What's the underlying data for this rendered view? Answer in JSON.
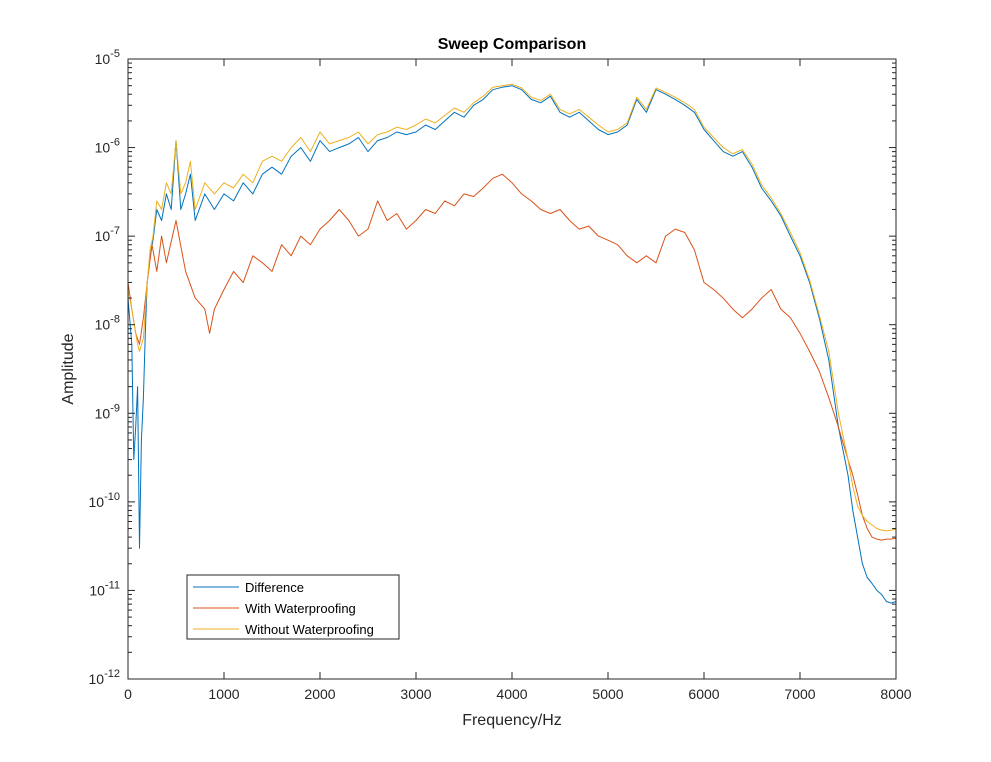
{
  "chart_data": {
    "type": "line",
    "title": "Sweep Comparison",
    "xlabel": "Frequency/Hz",
    "ylabel": "Amplitude",
    "xlim": [
      0,
      8000
    ],
    "ylim": [
      1e-12,
      1e-05
    ],
    "yscale": "log",
    "grid": false,
    "legend_position": "bottom-left",
    "x_ticks": [
      {
        "value": 0,
        "label": "0"
      },
      {
        "value": 1000,
        "label": "1000"
      },
      {
        "value": 2000,
        "label": "2000"
      },
      {
        "value": 3000,
        "label": "3000"
      },
      {
        "value": 4000,
        "label": "4000"
      },
      {
        "value": 5000,
        "label": "5000"
      },
      {
        "value": 6000,
        "label": "6000"
      },
      {
        "value": 7000,
        "label": "7000"
      },
      {
        "value": 8000,
        "label": "8000"
      }
    ],
    "y_ticks": [
      {
        "exp": -12,
        "base": "10",
        "sup": "-12"
      },
      {
        "exp": -11,
        "base": "10",
        "sup": "-11"
      },
      {
        "exp": -10,
        "base": "10",
        "sup": "-10"
      },
      {
        "exp": -9,
        "base": "10",
        "sup": "-9"
      },
      {
        "exp": -8,
        "base": "10",
        "sup": "-8"
      },
      {
        "exp": -7,
        "base": "10",
        "sup": "-7"
      },
      {
        "exp": -6,
        "base": "10",
        "sup": "-6"
      },
      {
        "exp": -5,
        "base": "10",
        "sup": "-5"
      }
    ],
    "series": [
      {
        "name": "Difference",
        "color": "#0072BD",
        "x": [
          0,
          40,
          60,
          80,
          100,
          120,
          140,
          160,
          180,
          200,
          230,
          260,
          300,
          350,
          400,
          450,
          500,
          550,
          600,
          650,
          700,
          800,
          900,
          1000,
          1100,
          1200,
          1300,
          1400,
          1500,
          1600,
          1700,
          1800,
          1900,
          2000,
          2100,
          2200,
          2300,
          2400,
          2500,
          2600,
          2700,
          2800,
          2900,
          3000,
          3100,
          3200,
          3300,
          3400,
          3500,
          3600,
          3700,
          3800,
          3900,
          4000,
          4100,
          4200,
          4300,
          4400,
          4500,
          4600,
          4700,
          4800,
          4900,
          5000,
          5100,
          5200,
          5300,
          5400,
          5500,
          5600,
          5700,
          5800,
          5900,
          6000,
          6100,
          6200,
          6300,
          6400,
          6500,
          6600,
          6700,
          6800,
          6900,
          7000,
          7100,
          7200,
          7300,
          7400,
          7500,
          7550,
          7600,
          7650,
          7700,
          7750,
          7800,
          7850,
          7900,
          7950,
          8000
        ],
        "y": [
          2e-08,
          6e-09,
          3e-10,
          7e-10,
          2e-09,
          3e-11,
          5e-10,
          1.5e-09,
          8e-09,
          3e-08,
          6e-08,
          9e-08,
          2e-07,
          1.5e-07,
          3e-07,
          2e-07,
          1.2e-06,
          2e-07,
          3e-07,
          5e-07,
          1.5e-07,
          3e-07,
          2e-07,
          3e-07,
          2.5e-07,
          4e-07,
          3e-07,
          5e-07,
          6e-07,
          5e-07,
          8e-07,
          1e-06,
          7e-07,
          1.2e-06,
          9e-07,
          1e-06,
          1.1e-06,
          1.3e-06,
          9e-07,
          1.2e-06,
          1.3e-06,
          1.5e-06,
          1.4e-06,
          1.5e-06,
          1.8e-06,
          1.6e-06,
          2e-06,
          2.5e-06,
          2.2e-06,
          3e-06,
          3.5e-06,
          4.5e-06,
          4.8e-06,
          5e-06,
          4.5e-06,
          3.5e-06,
          3.2e-06,
          3.8e-06,
          2.5e-06,
          2.2e-06,
          2.5e-06,
          2e-06,
          1.6e-06,
          1.4e-06,
          1.5e-06,
          1.8e-06,
          3.5e-06,
          2.5e-06,
          4.5e-06,
          4e-06,
          3.5e-06,
          3e-06,
          2.5e-06,
          1.6e-06,
          1.2e-06,
          9e-07,
          8e-07,
          9e-07,
          6e-07,
          3.5e-07,
          2.5e-07,
          1.7e-07,
          1e-07,
          6e-08,
          3e-08,
          1.2e-08,
          4e-09,
          7e-10,
          2e-10,
          8e-11,
          4e-11,
          2e-11,
          1.4e-11,
          1.2e-11,
          1e-11,
          9e-12,
          7.5e-12,
          7.2e-12,
          7.5e-12
        ]
      },
      {
        "name": "With Waterproofing",
        "color": "#D95319",
        "x": [
          0,
          40,
          80,
          120,
          160,
          200,
          250,
          300,
          350,
          400,
          500,
          600,
          700,
          800,
          850,
          900,
          1000,
          1100,
          1200,
          1300,
          1400,
          1500,
          1600,
          1700,
          1800,
          1900,
          2000,
          2100,
          2200,
          2300,
          2400,
          2500,
          2600,
          2700,
          2800,
          2900,
          3000,
          3100,
          3200,
          3300,
          3400,
          3500,
          3600,
          3700,
          3800,
          3900,
          4000,
          4100,
          4200,
          4300,
          4400,
          4500,
          4600,
          4700,
          4800,
          4900,
          5000,
          5100,
          5200,
          5300,
          5400,
          5500,
          5600,
          5700,
          5800,
          5900,
          6000,
          6100,
          6200,
          6300,
          6400,
          6500,
          6600,
          6700,
          6800,
          6900,
          7000,
          7100,
          7200,
          7300,
          7400,
          7500,
          7550,
          7600,
          7650,
          7700,
          7750,
          7800,
          7850,
          7900,
          7950,
          8000
        ],
        "y": [
          3e-08,
          1.5e-08,
          8e-09,
          6e-09,
          1.2e-08,
          3e-08,
          8e-08,
          4e-08,
          1e-07,
          5e-08,
          1.5e-07,
          4e-08,
          2e-08,
          1.5e-08,
          8e-09,
          1.5e-08,
          2.5e-08,
          4e-08,
          3e-08,
          6e-08,
          5e-08,
          4e-08,
          8e-08,
          6e-08,
          1e-07,
          8e-08,
          1.2e-07,
          1.5e-07,
          2e-07,
          1.5e-07,
          1e-07,
          1.2e-07,
          2.5e-07,
          1.5e-07,
          1.8e-07,
          1.2e-07,
          1.5e-07,
          2e-07,
          1.8e-07,
          2.5e-07,
          2.2e-07,
          3e-07,
          2.8e-07,
          3.5e-07,
          4.5e-07,
          5e-07,
          4e-07,
          3e-07,
          2.5e-07,
          2e-07,
          1.8e-07,
          2e-07,
          1.5e-07,
          1.2e-07,
          1.3e-07,
          1e-07,
          9e-08,
          8e-08,
          6e-08,
          5e-08,
          6e-08,
          5e-08,
          1e-07,
          1.2e-07,
          1.1e-07,
          7e-08,
          3e-08,
          2.5e-08,
          2e-08,
          1.5e-08,
          1.2e-08,
          1.5e-08,
          2e-08,
          2.5e-08,
          1.5e-08,
          1.2e-08,
          8e-09,
          5e-09,
          3e-09,
          1.5e-09,
          7e-10,
          3e-10,
          2e-10,
          1.2e-10,
          7e-11,
          5e-11,
          4e-11,
          3.8e-11,
          3.7e-11,
          3.8e-11,
          3.8e-11,
          3.9e-11
        ]
      },
      {
        "name": "Without Waterproofing",
        "color": "#EDB120",
        "x": [
          0,
          40,
          80,
          100,
          120,
          160,
          200,
          230,
          260,
          300,
          350,
          400,
          450,
          500,
          550,
          600,
          650,
          700,
          800,
          900,
          1000,
          1100,
          1200,
          1300,
          1400,
          1500,
          1600,
          1700,
          1800,
          1900,
          2000,
          2100,
          2200,
          2300,
          2400,
          2500,
          2600,
          2700,
          2800,
          2900,
          3000,
          3100,
          3200,
          3300,
          3400,
          3500,
          3600,
          3700,
          3800,
          3900,
          4000,
          4100,
          4200,
          4300,
          4400,
          4500,
          4600,
          4700,
          4800,
          4900,
          5000,
          5100,
          5200,
          5300,
          5400,
          5500,
          5600,
          5700,
          5800,
          5900,
          6000,
          6100,
          6200,
          6300,
          6400,
          6500,
          6600,
          6700,
          6800,
          6900,
          7000,
          7100,
          7200,
          7300,
          7400,
          7500,
          7550,
          7600,
          7650,
          7700,
          7750,
          7800,
          7850,
          7900,
          7950,
          8000
        ],
        "y": [
          2.5e-08,
          1.5e-08,
          8e-09,
          6e-09,
          5e-09,
          7e-09,
          3e-08,
          7e-08,
          1e-07,
          2.5e-07,
          2e-07,
          4e-07,
          3e-07,
          1.2e-06,
          3e-07,
          4e-07,
          7e-07,
          2e-07,
          4e-07,
          3e-07,
          4e-07,
          3.5e-07,
          5e-07,
          4e-07,
          7e-07,
          8e-07,
          7e-07,
          1e-06,
          1.3e-06,
          9e-07,
          1.5e-06,
          1.1e-06,
          1.2e-06,
          1.3e-06,
          1.5e-06,
          1.1e-06,
          1.4e-06,
          1.5e-06,
          1.7e-06,
          1.6e-06,
          1.8e-06,
          2.1e-06,
          1.9e-06,
          2.3e-06,
          2.8e-06,
          2.5e-06,
          3.2e-06,
          3.8e-06,
          4.8e-06,
          5e-06,
          5.2e-06,
          4.7e-06,
          3.7e-06,
          3.4e-06,
          4e-06,
          2.7e-06,
          2.4e-06,
          2.7e-06,
          2.2e-06,
          1.8e-06,
          1.5e-06,
          1.6e-06,
          1.9e-06,
          3.7e-06,
          2.7e-06,
          4.7e-06,
          4.2e-06,
          3.7e-06,
          3.2e-06,
          2.7e-06,
          1.7e-06,
          1.3e-06,
          1e-06,
          8.5e-07,
          9.5e-07,
          6.5e-07,
          3.8e-07,
          2.7e-07,
          1.8e-07,
          1.1e-07,
          6.5e-08,
          3.2e-08,
          1.3e-08,
          5e-09,
          1e-09,
          3e-10,
          1.5e-10,
          9e-11,
          7e-11,
          6e-11,
          5.5e-11,
          5e-11,
          4.8e-11,
          4.7e-11,
          4.8e-11,
          4.9e-11
        ]
      }
    ]
  }
}
